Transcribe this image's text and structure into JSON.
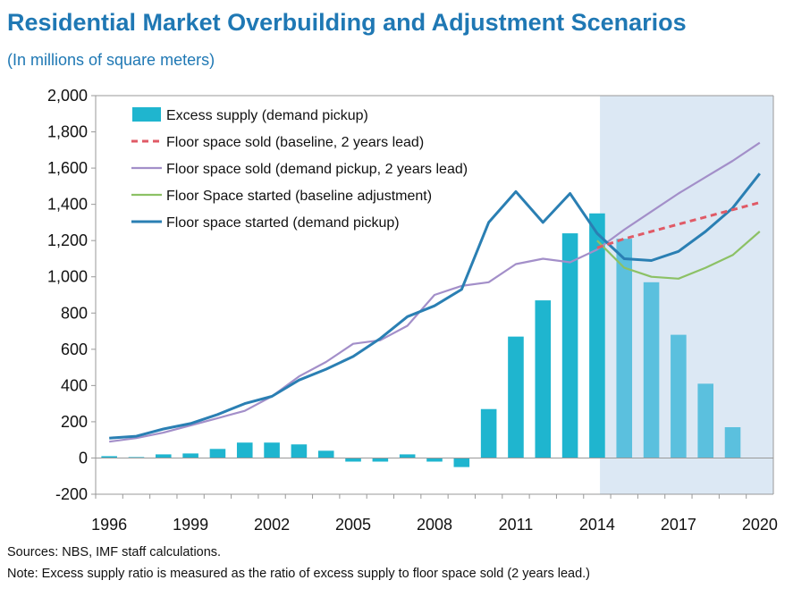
{
  "title": "Residential Market Overbuilding and Adjustment Scenarios",
  "subtitle": "(In millions of square meters)",
  "footnotes": {
    "sources": "Sources: NBS, IMF staff calculations.",
    "note": "Note: Excess supply ratio is measured as the ratio of excess supply to floor space sold (2 years lead.)"
  },
  "colors": {
    "bar": "#1fb5cf",
    "bar_projection": "#5bc0de",
    "projection_shade": "#dce8f4",
    "floor_sold_baseline": "#e05a66",
    "floor_sold_demand": "#a38fc9",
    "started_baseline": "#8cc165",
    "started_demand": "#2a7fb3"
  },
  "chart_data": {
    "type": "bar",
    "x": [
      1996,
      1997,
      1998,
      1999,
      2000,
      2001,
      2002,
      2003,
      2004,
      2005,
      2006,
      2007,
      2008,
      2009,
      2010,
      2011,
      2012,
      2013,
      2014,
      2015,
      2016,
      2017,
      2018,
      2019,
      2020
    ],
    "x_ticks": [
      "1996",
      "1999",
      "2002",
      "2005",
      "2008",
      "2011",
      "2014",
      "2017",
      "2020"
    ],
    "ylim": [
      -200,
      2000
    ],
    "y_ticks": [
      "-200",
      "0",
      "200",
      "400",
      "600",
      "800",
      "1,000",
      "1,200",
      "1,400",
      "1,600",
      "1,800",
      "2,000"
    ],
    "projection_start": 2015,
    "grid": false,
    "legend_position": "top-left",
    "series": [
      {
        "name": "Excess supply (demand pickup)",
        "kind": "bar",
        "values": [
          10,
          5,
          20,
          25,
          50,
          85,
          85,
          75,
          40,
          -20,
          -20,
          20,
          -20,
          -50,
          270,
          670,
          870,
          1240,
          1350,
          1210,
          970,
          680,
          410,
          170,
          null
        ]
      },
      {
        "name": "Floor space sold (baseline, 2 years lead)",
        "kind": "dashed-line",
        "x": [
          2014,
          2015,
          2016,
          2017,
          2018,
          2019,
          2020
        ],
        "values": [
          1160,
          1210,
          1250,
          1290,
          1330,
          1370,
          1410
        ]
      },
      {
        "name": "Floor space sold (demand pickup, 2 years lead)",
        "kind": "line",
        "x": [
          1996,
          1997,
          1998,
          1999,
          2000,
          2001,
          2002,
          2003,
          2004,
          2005,
          2006,
          2007,
          2008,
          2009,
          2010,
          2011,
          2012,
          2013,
          2014,
          2015,
          2016,
          2017,
          2018,
          2019,
          2020
        ],
        "values": [
          90,
          110,
          140,
          180,
          220,
          260,
          340,
          450,
          530,
          630,
          650,
          730,
          900,
          950,
          970,
          1070,
          1100,
          1080,
          1150,
          1260,
          1360,
          1460,
          1550,
          1640,
          1740
        ]
      },
      {
        "name": "Floor Space started (baseline adjustment)",
        "kind": "line",
        "x": [
          2014,
          2015,
          2016,
          2017,
          2018,
          2019,
          2020
        ],
        "values": [
          1200,
          1050,
          1000,
          990,
          1050,
          1120,
          1250
        ]
      },
      {
        "name": "Floor space started (demand pickup)",
        "kind": "line",
        "x": [
          1996,
          1997,
          1998,
          1999,
          2000,
          2001,
          2002,
          2003,
          2004,
          2005,
          2006,
          2007,
          2008,
          2009,
          2010,
          2011,
          2012,
          2013,
          2014,
          2015,
          2016,
          2017,
          2018,
          2019,
          2020
        ],
        "values": [
          110,
          120,
          160,
          190,
          240,
          300,
          340,
          430,
          490,
          560,
          660,
          780,
          840,
          930,
          1300,
          1470,
          1300,
          1460,
          1240,
          1100,
          1090,
          1140,
          1250,
          1380,
          1570
        ]
      }
    ]
  }
}
